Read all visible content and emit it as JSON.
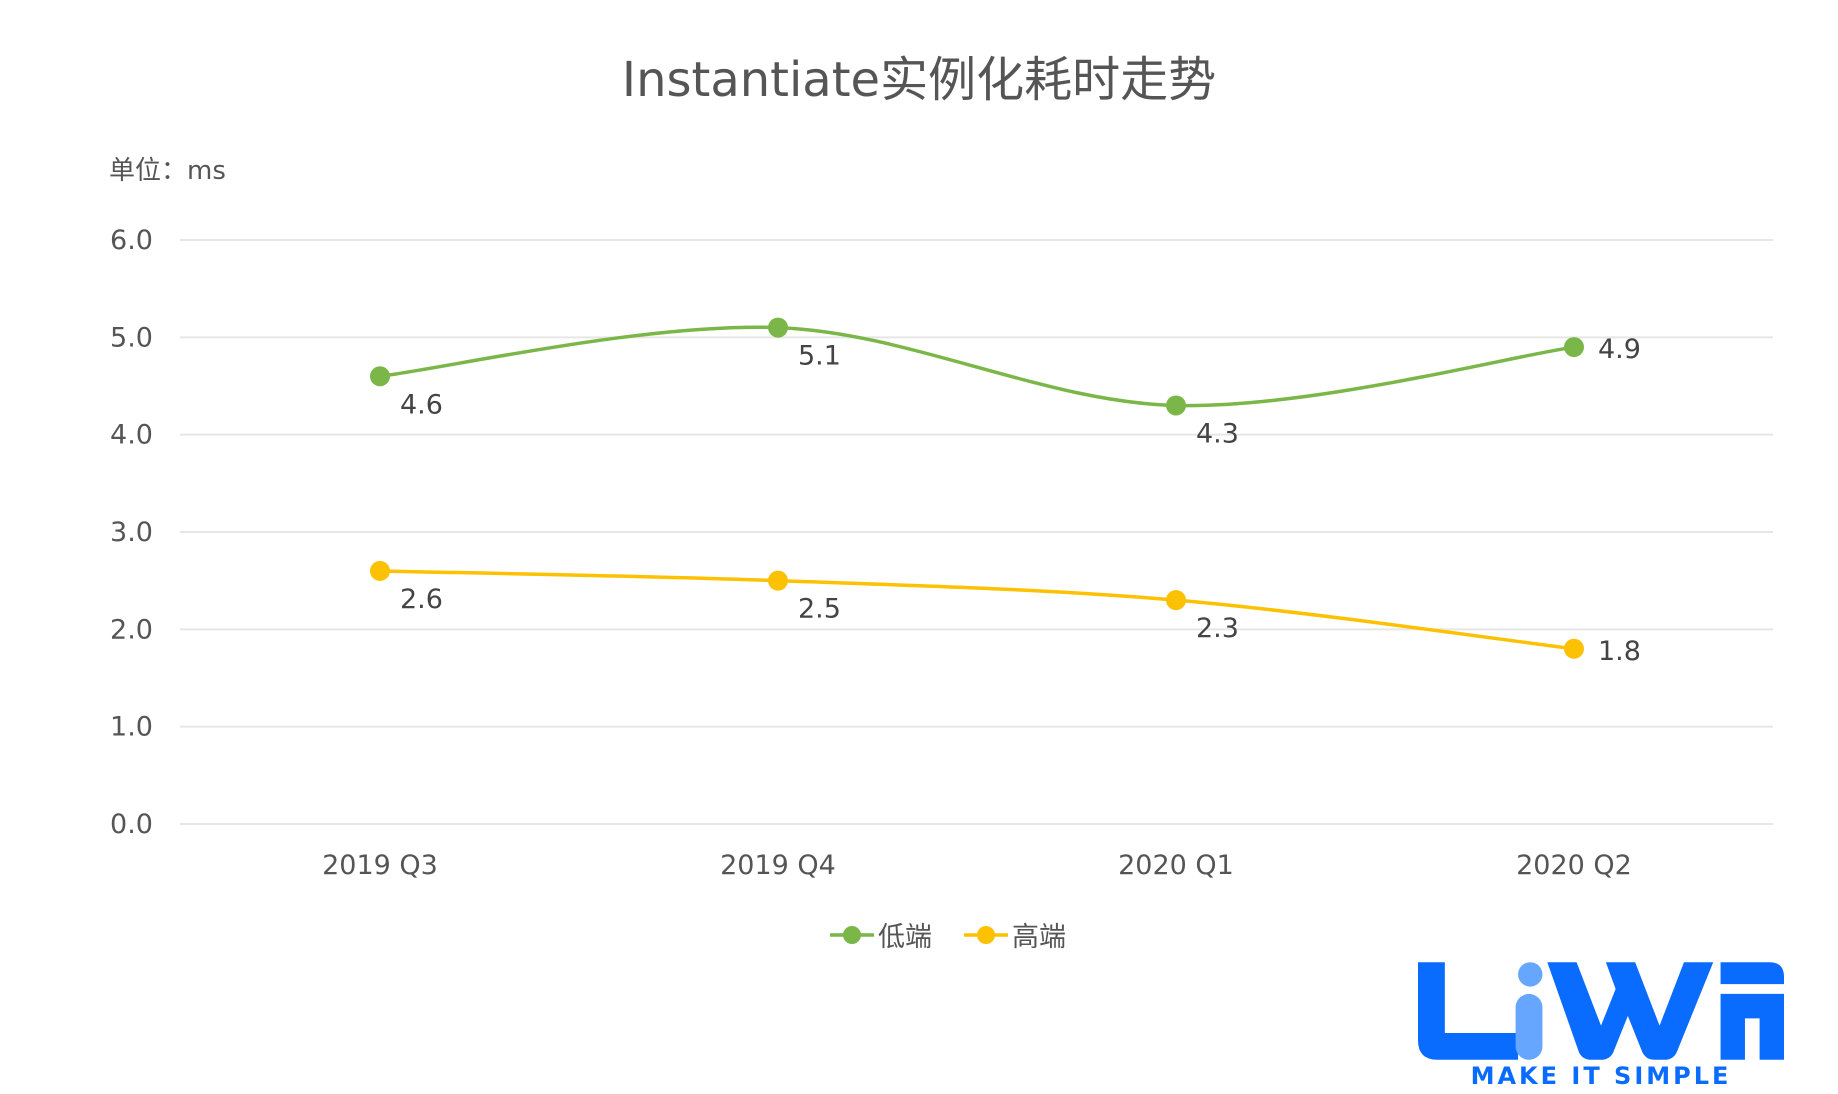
{
  "chart_data": {
    "type": "line",
    "title": "Instantiate实例化耗时走势",
    "unit_label": "单位：ms",
    "categories": [
      "2019 Q3",
      "2019 Q4",
      "2020 Q1",
      "2020 Q2"
    ],
    "ylim": [
      0,
      6
    ],
    "yticks": [
      "0.0",
      "1.0",
      "2.0",
      "3.0",
      "4.0",
      "5.0",
      "6.0"
    ],
    "grid": true,
    "smooth": true,
    "legend_position": "bottom",
    "series": [
      {
        "name": "低端",
        "color": "#7ab648",
        "values": [
          4.6,
          5.1,
          4.3,
          4.9
        ]
      },
      {
        "name": "高端",
        "color": "#fcc100",
        "values": [
          2.6,
          2.5,
          2.3,
          1.8
        ]
      }
    ]
  },
  "logo": {
    "text": "LiWA",
    "tagline": "MAKE IT SIMPLE",
    "color": "#0a6cff"
  }
}
